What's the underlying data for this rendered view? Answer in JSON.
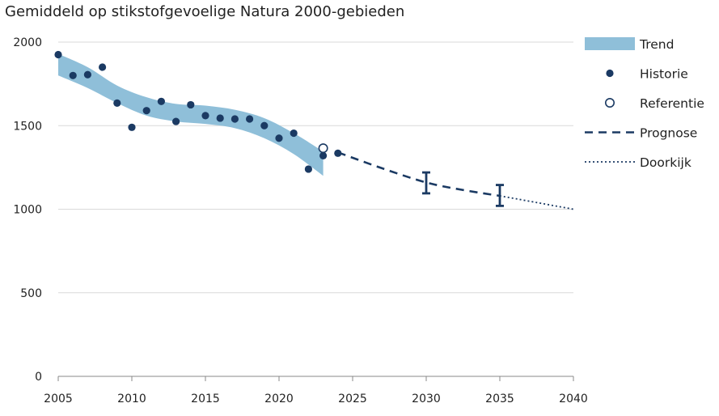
{
  "chart_data": {
    "type": "line",
    "title": "Gemiddeld op stikstofgevoelige Natura 2000-gebieden",
    "xlabel": "",
    "ylabel": "",
    "xlim": [
      2005,
      2040
    ],
    "ylim": [
      0,
      2000
    ],
    "x_ticks": [
      2005,
      2010,
      2015,
      2020,
      2025,
      2030,
      2035,
      2040
    ],
    "y_ticks": [
      0,
      500,
      1000,
      1500,
      2000
    ],
    "grid": true,
    "legend_position": "right",
    "colors": {
      "trend": "#8fbfd9",
      "points": "#1b3a63",
      "prognosis": "#1b3a63",
      "grid": "#d9d9d9",
      "axis": "#888888"
    },
    "legend": [
      {
        "key": "trend",
        "label": "Trend"
      },
      {
        "key": "history",
        "label": "Historie"
      },
      {
        "key": "reference",
        "label": "Referentie"
      },
      {
        "key": "prognosis",
        "label": "Prognose"
      },
      {
        "key": "outlook",
        "label": "Doorkijk"
      }
    ],
    "series": [
      {
        "name": "Trend",
        "style": "band",
        "x": [
          2005,
          2007,
          2009,
          2011,
          2013,
          2015,
          2017,
          2019,
          2021,
          2023
        ],
        "lower": [
          1800,
          1725,
          1635,
          1560,
          1525,
          1510,
          1485,
          1425,
          1330,
          1200
        ],
        "upper": [
          1930,
          1850,
          1740,
          1670,
          1630,
          1620,
          1595,
          1545,
          1455,
          1345
        ]
      },
      {
        "name": "Historie",
        "style": "points",
        "x": [
          2005,
          2006,
          2007,
          2008,
          2009,
          2010,
          2011,
          2012,
          2013,
          2014,
          2015,
          2016,
          2017,
          2018,
          2019,
          2020,
          2021,
          2022,
          2023,
          2024
        ],
        "y": [
          1925,
          1800,
          1805,
          1850,
          1635,
          1490,
          1590,
          1645,
          1525,
          1625,
          1560,
          1545,
          1540,
          1540,
          1500,
          1425,
          1455,
          1240,
          1320,
          1335
        ]
      },
      {
        "name": "Referentie",
        "style": "open-point",
        "x": [
          2023
        ],
        "y": [
          1365
        ]
      },
      {
        "name": "Prognose",
        "style": "dashed",
        "x": [
          2024,
          2027,
          2030,
          2032.5,
          2035
        ],
        "y": [
          1340,
          1245,
          1160,
          1115,
          1080
        ],
        "error_bars": [
          {
            "x": 2030,
            "low": 1095,
            "high": 1220
          },
          {
            "x": 2035,
            "low": 1020,
            "high": 1145
          }
        ]
      },
      {
        "name": "Doorkijk",
        "style": "dotted",
        "x": [
          2035,
          2037.5,
          2040
        ],
        "y": [
          1080,
          1040,
          1000
        ]
      }
    ]
  }
}
